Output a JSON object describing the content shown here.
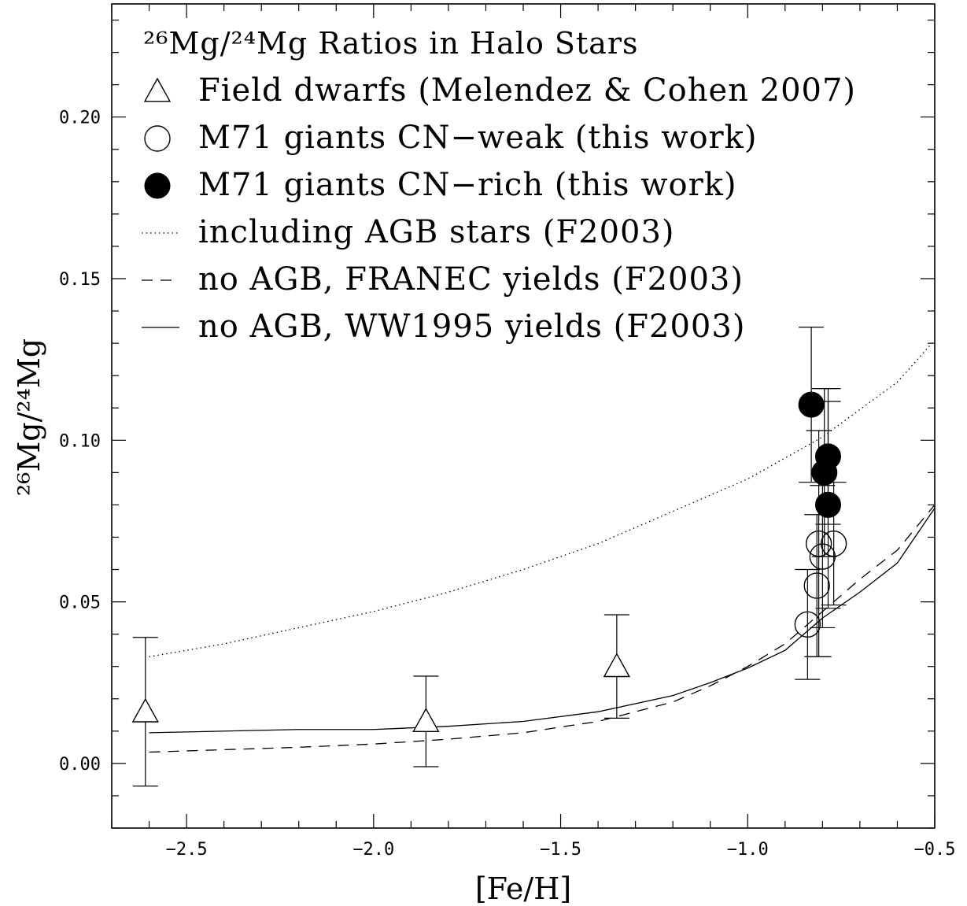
{
  "chart_data": {
    "type": "scatter",
    "title": "²⁶Mg/²⁴Mg Ratios in Halo Stars",
    "xlabel": "[Fe/H]",
    "ylabel": "²⁶Mg/²⁴Mg",
    "xlim": [
      -2.7,
      -0.5
    ],
    "ylim": [
      -0.02,
      0.235
    ],
    "xticks": [
      -2.5,
      -2.0,
      -1.5,
      -1.0,
      -0.5
    ],
    "xtick_labels": [
      "−2.5",
      "−2.0",
      "−1.5",
      "−1.0",
      "−0.5"
    ],
    "yticks": [
      0.0,
      0.05,
      0.1,
      0.15,
      0.2
    ],
    "ytick_labels": [
      "0.00",
      "0.05",
      "0.10",
      "0.15",
      "0.20"
    ],
    "grid": false,
    "legend_position": "top-left",
    "series": [
      {
        "name": "Field dwarfs (Melendez & Cohen 2007)",
        "marker": "open-triangle",
        "points": [
          {
            "x": -2.61,
            "y": 0.016,
            "err": 0.023
          },
          {
            "x": -1.86,
            "y": 0.013,
            "err": 0.014
          },
          {
            "x": -1.35,
            "y": 0.03,
            "err": 0.016
          }
        ]
      },
      {
        "name": "M71 giants CN−weak (this work)",
        "marker": "open-circle",
        "points": [
          {
            "x": -0.84,
            "y": 0.043,
            "err": 0.017
          },
          {
            "x": -0.815,
            "y": 0.055,
            "err": 0.022
          },
          {
            "x": -0.81,
            "y": 0.068,
            "err": 0.035
          },
          {
            "x": -0.8,
            "y": 0.064,
            "err": 0.022
          },
          {
            "x": -0.77,
            "y": 0.068,
            "err": 0.019
          }
        ]
      },
      {
        "name": "M71 giants CN−rich (this work)",
        "marker": "filled-circle",
        "points": [
          {
            "x": -0.83,
            "y": 0.111,
            "err": 0.024
          },
          {
            "x": -0.795,
            "y": 0.09,
            "err": 0.026
          },
          {
            "x": -0.785,
            "y": 0.095,
            "err": 0.021
          },
          {
            "x": -0.785,
            "y": 0.08,
            "err": 0.032
          }
        ]
      },
      {
        "name": "including AGB stars (F2003)",
        "line": "dotted",
        "x": [
          -2.6,
          -2.4,
          -2.2,
          -2.0,
          -1.8,
          -1.6,
          -1.4,
          -1.2,
          -1.0,
          -0.8,
          -0.6,
          -0.5
        ],
        "y": [
          0.033,
          0.037,
          0.042,
          0.047,
          0.053,
          0.06,
          0.068,
          0.078,
          0.088,
          0.101,
          0.118,
          0.131
        ]
      },
      {
        "name": "no AGB, FRANEC yields (F2003)",
        "line": "dashed",
        "x": [
          -2.6,
          -2.2,
          -2.0,
          -1.8,
          -1.6,
          -1.4,
          -1.2,
          -1.1,
          -1.0,
          -0.9,
          -0.8,
          -0.7,
          -0.6,
          -0.5
        ],
        "y": [
          0.0035,
          0.005,
          0.006,
          0.0075,
          0.0095,
          0.013,
          0.019,
          0.024,
          0.03,
          0.037,
          0.047,
          0.057,
          0.066,
          0.08
        ]
      },
      {
        "name": "no AGB, WW1995 yields (F2003)",
        "line": "solid",
        "x": [
          -2.6,
          -2.2,
          -2.0,
          -1.8,
          -1.6,
          -1.4,
          -1.2,
          -1.1,
          -1.0,
          -0.9,
          -0.8,
          -0.7,
          -0.6,
          -0.5
        ],
        "y": [
          0.0095,
          0.0105,
          0.0105,
          0.0115,
          0.013,
          0.016,
          0.021,
          0.025,
          0.0295,
          0.035,
          0.045,
          0.053,
          0.062,
          0.079
        ]
      }
    ]
  }
}
